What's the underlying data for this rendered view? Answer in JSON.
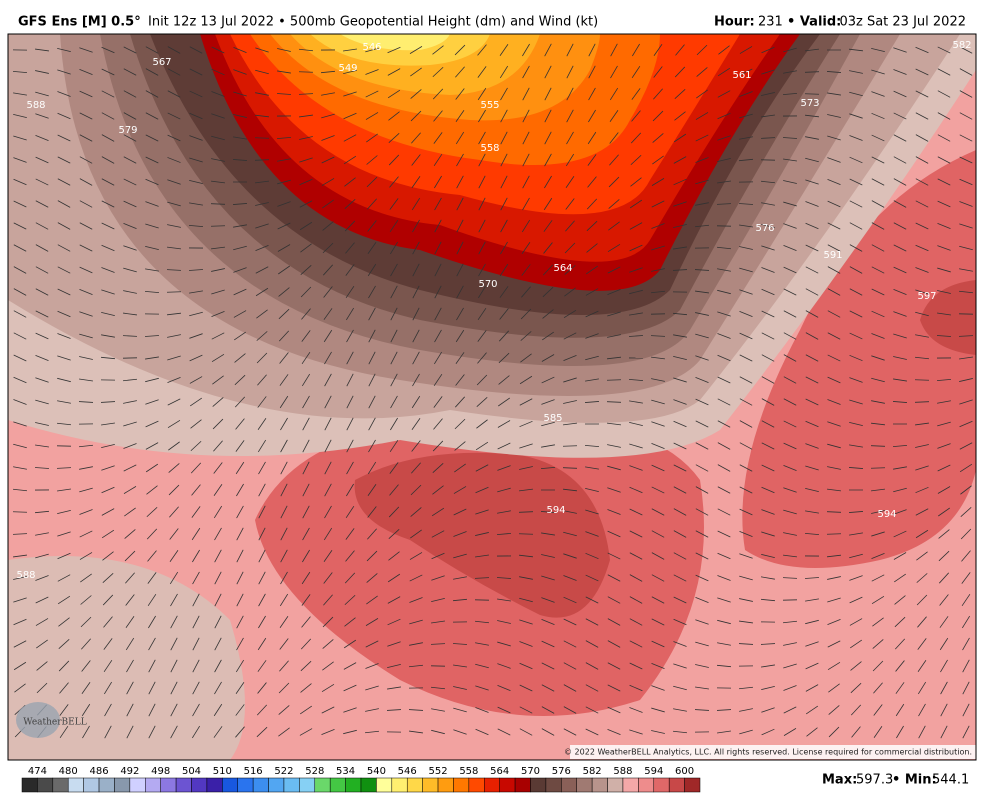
{
  "header": {
    "model": "GFS Ens [M] 0.5°",
    "init": "Init 12z 13 Jul 2022 • 500mb Geopotential Height (dm) and Wind (kt)",
    "hour_label": "Hour:",
    "hour": 231,
    "valid_label": "• Valid:",
    "valid": "03z Sat 23 Jul 2022"
  },
  "map": {
    "contour_labels": [
      567,
      546,
      549,
      555,
      558,
      561,
      573,
      564,
      570,
      576,
      579,
      588,
      582,
      591,
      597,
      585,
      594,
      594,
      588
    ],
    "copyright": "© 2022 WeatherBELL Analytics, LLC. All rights reserved. License required for commercial distribution.",
    "logo": "WeatherBELL"
  },
  "colorbar": {
    "range": [
      471,
      603
    ],
    "step": 3,
    "ticks": [
      474,
      480,
      486,
      492,
      498,
      504,
      510,
      516,
      522,
      528,
      534,
      540,
      546,
      552,
      558,
      564,
      570,
      576,
      582,
      588,
      594,
      600
    ],
    "colors": [
      "#2a2a2a",
      "#4a4a4a",
      "#6a6a6a",
      "#c8dcf0",
      "#b0c8e4",
      "#9ab0c8",
      "#8898ac",
      "#d0d0ff",
      "#b4aaf2",
      "#8c78e2",
      "#6c54d2",
      "#5238c2",
      "#3a20a8",
      "#1858e0",
      "#2a74ee",
      "#3c8ef0",
      "#52a6f2",
      "#6abcf2",
      "#86d0f4",
      "#6ad86a",
      "#44c844",
      "#22b022",
      "#109010",
      "#ffff9a",
      "#fff070",
      "#ffd848",
      "#ffbc28",
      "#ff9c10",
      "#ff7800",
      "#ff4a00",
      "#e82000",
      "#c80800",
      "#a80000",
      "#5a3a34",
      "#6e4a42",
      "#8a6058",
      "#a07a72",
      "#b8948c",
      "#d0b0a8",
      "#f4a8a8",
      "#ee8c8c",
      "#e06868",
      "#c84848",
      "#a02828"
    ]
  },
  "footer": {
    "max_label": "Max:",
    "max": 597.3,
    "min_label": "• Min:",
    "min": 544.1
  }
}
